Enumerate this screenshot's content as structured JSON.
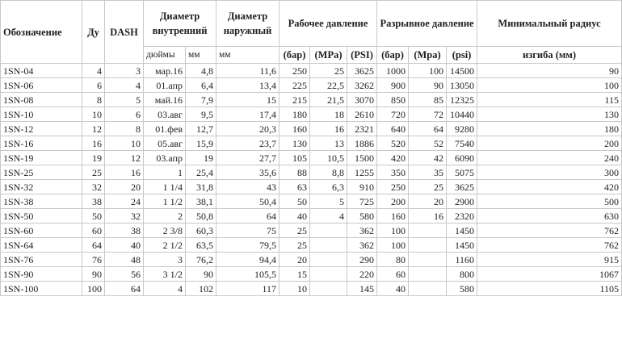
{
  "header": {
    "designation": "Обозначение",
    "du": "Ду",
    "dash": "DASH",
    "inner_diameter": "Диаметр внутренний",
    "outer_diameter": "Диаметр наружный",
    "working_pressure": "Рабочее давление",
    "burst_pressure": "Разрывное давление",
    "min_radius": "Минимальный радиус",
    "inches": "дюймы",
    "mm_inner": "мм",
    "mm_outer": "мм",
    "wp_bar": "(бар)",
    "wp_mpa": "(MPa)",
    "wp_psi": "(PSI)",
    "bp_bar": "(бар)",
    "bp_mpa": "(Mpa)",
    "bp_psi": "(psi)",
    "min_radius_unit": "изгиба (мм)"
  },
  "rows": [
    [
      "1SN-04",
      "4",
      "3",
      "мар.16",
      "4,8",
      "11,6",
      "250",
      "25",
      "3625",
      "1000",
      "100",
      "14500",
      "90"
    ],
    [
      "1SN-06",
      "6",
      "4",
      "01.апр",
      "6,4",
      "13,4",
      "225",
      "22,5",
      "3262",
      "900",
      "90",
      "13050",
      "100"
    ],
    [
      "1SN-08",
      "8",
      "5",
      "май.16",
      "7,9",
      "15",
      "215",
      "21,5",
      "3070",
      "850",
      "85",
      "12325",
      "115"
    ],
    [
      "1SN-10",
      "10",
      "6",
      "03.авг",
      "9,5",
      "17,4",
      "180",
      "18",
      "2610",
      "720",
      "72",
      "10440",
      "130"
    ],
    [
      "1SN-12",
      "12",
      "8",
      "01.фев",
      "12,7",
      "20,3",
      "160",
      "16",
      "2321",
      "640",
      "64",
      "9280",
      "180"
    ],
    [
      "1SN-16",
      "16",
      "10",
      "05.авг",
      "15,9",
      "23,7",
      "130",
      "13",
      "1886",
      "520",
      "52",
      "7540",
      "200"
    ],
    [
      "1SN-19",
      "19",
      "12",
      "03.апр",
      "19",
      "27,7",
      "105",
      "10,5",
      "1500",
      "420",
      "42",
      "6090",
      "240"
    ],
    [
      "1SN-25",
      "25",
      "16",
      "1",
      "25,4",
      "35,6",
      "88",
      "8,8",
      "1255",
      "350",
      "35",
      "5075",
      "300"
    ],
    [
      "1SN-32",
      "32",
      "20",
      "1 1/4",
      "31,8",
      "43",
      "63",
      "6,3",
      "910",
      "250",
      "25",
      "3625",
      "420"
    ],
    [
      "1SN-38",
      "38",
      "24",
      "1 1/2",
      "38,1",
      "50,4",
      "50",
      "5",
      "725",
      "200",
      "20",
      "2900",
      "500"
    ],
    [
      "1SN-50",
      "50",
      "32",
      "2",
      "50,8",
      "64",
      "40",
      "4",
      "580",
      "160",
      "16",
      "2320",
      "630"
    ],
    [
      "1SN-60",
      "60",
      "38",
      "2 3/8",
      "60,3",
      "75",
      "25",
      "",
      "362",
      "100",
      "",
      "1450",
      "762"
    ],
    [
      "1SN-64",
      "64",
      "40",
      "2 1/2",
      "63,5",
      "79,5",
      "25",
      "",
      "362",
      "100",
      "",
      "1450",
      "762"
    ],
    [
      "1SN-76",
      "76",
      "48",
      "3",
      "76,2",
      "94,4",
      "20",
      "",
      "290",
      "80",
      "",
      "1160",
      "915"
    ],
    [
      "1SN-90",
      "90",
      "56",
      "3 1/2",
      "90",
      "105,5",
      "15",
      "",
      "220",
      "60",
      "",
      "800",
      "1067"
    ],
    [
      "1SN-100",
      "100",
      "64",
      "4",
      "102",
      "117",
      "10",
      "",
      "145",
      "40",
      "",
      "580",
      "1105"
    ]
  ]
}
